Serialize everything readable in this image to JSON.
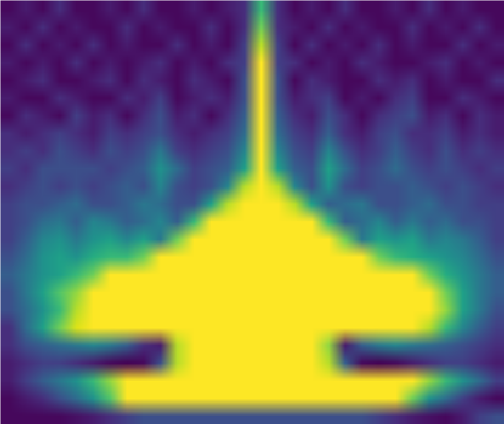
{
  "chart_data": {
    "type": "heatmap",
    "color": "viridis",
    "tick_labels": false,
    "values": [
      [
        0.1,
        0.15,
        0.1,
        0.2,
        0.1,
        0.1,
        0.15,
        0.1,
        0.2,
        0.1,
        0.1,
        0.15,
        0.1,
        0.15,
        0.2,
        0.7,
        0.2,
        0.1,
        0.15,
        0.1,
        0.2,
        0.1,
        0.1,
        0.15,
        0.1,
        0.2,
        0.1,
        0.15,
        0.1,
        0.1
      ],
      [
        0.15,
        0.1,
        0.2,
        0.1,
        0.15,
        0.1,
        0.1,
        0.2,
        0.1,
        0.15,
        0.1,
        0.1,
        0.2,
        0.1,
        0.2,
        0.8,
        0.2,
        0.15,
        0.1,
        0.2,
        0.1,
        0.15,
        0.1,
        0.1,
        0.2,
        0.1,
        0.15,
        0.1,
        0.2,
        0.1
      ],
      [
        0.1,
        0.2,
        0.1,
        0.15,
        0.1,
        0.2,
        0.1,
        0.15,
        0.1,
        0.1,
        0.2,
        0.1,
        0.15,
        0.1,
        0.25,
        0.9,
        0.25,
        0.1,
        0.2,
        0.1,
        0.15,
        0.1,
        0.2,
        0.1,
        0.15,
        0.1,
        0.1,
        0.2,
        0.1,
        0.15
      ],
      [
        0.15,
        0.1,
        0.15,
        0.1,
        0.2,
        0.1,
        0.15,
        0.1,
        0.15,
        0.2,
        0.1,
        0.15,
        0.1,
        0.2,
        0.25,
        1,
        0.25,
        0.2,
        0.1,
        0.15,
        0.1,
        0.2,
        0.15,
        0.1,
        0.1,
        0.15,
        0.2,
        0.1,
        0.15,
        0.1
      ],
      [
        0.1,
        0.15,
        0.2,
        0.1,
        0.1,
        0.15,
        0.2,
        0.1,
        0.2,
        0.15,
        0.1,
        0.2,
        0.15,
        0.1,
        0.3,
        1,
        0.3,
        0.1,
        0.2,
        0.15,
        0.1,
        0.1,
        0.2,
        0.15,
        0.2,
        0.1,
        0.15,
        0.1,
        0.1,
        0.2
      ],
      [
        0.15,
        0.1,
        0.1,
        0.2,
        0.15,
        0.1,
        0.1,
        0.2,
        0.15,
        0.25,
        0.1,
        0.15,
        0.2,
        0.15,
        0.3,
        1,
        0.3,
        0.15,
        0.2,
        0.25,
        0.1,
        0.15,
        0.1,
        0.2,
        0.25,
        0.1,
        0.1,
        0.2,
        0.15,
        0.1
      ],
      [
        0.1,
        0.2,
        0.15,
        0.1,
        0.25,
        0.15,
        0.2,
        0.1,
        0.2,
        0.3,
        0.15,
        0.2,
        0.1,
        0.2,
        0.35,
        1,
        0.35,
        0.2,
        0.15,
        0.3,
        0.2,
        0.1,
        0.2,
        0.25,
        0.3,
        0.15,
        0.2,
        0.1,
        0.2,
        0.15
      ],
      [
        0.2,
        0.15,
        0.2,
        0.25,
        0.2,
        0.15,
        0.25,
        0.2,
        0.25,
        0.3,
        0.2,
        0.15,
        0.2,
        0.25,
        0.4,
        1,
        0.4,
        0.25,
        0.2,
        0.35,
        0.2,
        0.15,
        0.25,
        0.3,
        0.2,
        0.2,
        0.25,
        0.15,
        0.2,
        0.15
      ],
      [
        0.2,
        0.25,
        0.2,
        0.3,
        0.25,
        0.2,
        0.3,
        0.25,
        0.3,
        0.45,
        0.25,
        0.2,
        0.25,
        0.3,
        0.5,
        1,
        0.5,
        0.3,
        0.25,
        0.5,
        0.3,
        0.2,
        0.25,
        0.35,
        0.25,
        0.2,
        0.3,
        0.2,
        0.25,
        0.2
      ],
      [
        0.25,
        0.2,
        0.3,
        0.3,
        0.3,
        0.3,
        0.25,
        0.3,
        0.35,
        0.55,
        0.4,
        0.25,
        0.3,
        0.35,
        0.6,
        1,
        0.6,
        0.35,
        0.3,
        0.6,
        0.4,
        0.25,
        0.3,
        0.4,
        0.3,
        0.25,
        0.3,
        0.25,
        0.2,
        0.25
      ],
      [
        0.2,
        0.25,
        0.3,
        0.25,
        0.3,
        0.25,
        0.3,
        0.35,
        0.3,
        0.5,
        0.3,
        0.25,
        0.3,
        0.5,
        0.9,
        1,
        0.9,
        0.5,
        0.3,
        0.55,
        0.3,
        0.25,
        0.3,
        0.3,
        0.35,
        0.3,
        0.25,
        0.3,
        0.25,
        0.2
      ],
      [
        0.25,
        0.3,
        0.3,
        0.35,
        0.4,
        0.3,
        0.3,
        0.35,
        0.45,
        0.4,
        0.3,
        0.3,
        0.6,
        0.9,
        1,
        1,
        1,
        0.9,
        0.6,
        0.35,
        0.4,
        0.45,
        0.3,
        0.3,
        0.35,
        0.4,
        0.3,
        0.3,
        0.25,
        0.25
      ],
      [
        0.25,
        0.3,
        0.4,
        0.45,
        0.35,
        0.5,
        0.45,
        0.35,
        0.4,
        0.5,
        0.35,
        0.7,
        1,
        1,
        1,
        1,
        1,
        1,
        1,
        0.7,
        0.35,
        0.4,
        0.5,
        0.35,
        0.45,
        0.35,
        0.4,
        0.3,
        0.3,
        0.25
      ],
      [
        0.25,
        0.35,
        0.5,
        0.55,
        0.45,
        0.55,
        0.6,
        0.5,
        0.6,
        0.45,
        0.8,
        1,
        1,
        1,
        1,
        1,
        1,
        1,
        1,
        1,
        0.8,
        0.45,
        0.6,
        0.55,
        0.6,
        0.45,
        0.5,
        0.45,
        0.35,
        0.25
      ],
      [
        0.3,
        0.4,
        0.55,
        0.6,
        0.55,
        0.65,
        0.7,
        0.7,
        0.8,
        1,
        1,
        1,
        1,
        1,
        1,
        1,
        1,
        1,
        1,
        1,
        1,
        1,
        0.8,
        0.7,
        0.65,
        0.6,
        0.55,
        0.5,
        0.4,
        0.3
      ],
      [
        0.35,
        0.45,
        0.55,
        0.6,
        0.7,
        0.8,
        1,
        1,
        1,
        1,
        1,
        1,
        1,
        1,
        1,
        1,
        1,
        1,
        1,
        1,
        1,
        1,
        1,
        1,
        1,
        0.8,
        0.65,
        0.55,
        0.45,
        0.35
      ],
      [
        0.3,
        0.45,
        0.6,
        0.75,
        0.85,
        1,
        1,
        1,
        1,
        1,
        1,
        1,
        1,
        1,
        1,
        1,
        1,
        1,
        1,
        1,
        1,
        1,
        1,
        1,
        1,
        1,
        0.8,
        0.6,
        0.45,
        0.35
      ],
      [
        0.3,
        0.4,
        0.55,
        0.7,
        0.9,
        1,
        1,
        1,
        1,
        1,
        1,
        1,
        1,
        1,
        1,
        1,
        1,
        1,
        1,
        1,
        1,
        1,
        1,
        1,
        1,
        1,
        0.85,
        0.6,
        0.45,
        0.3
      ],
      [
        0.2,
        0.4,
        0.6,
        0.8,
        0.95,
        1,
        1,
        1,
        1,
        1,
        1,
        1,
        1,
        1,
        1,
        1,
        1,
        1,
        1,
        1,
        1,
        1,
        1,
        1,
        1,
        0.9,
        0.7,
        0.5,
        0.35,
        0.25
      ],
      [
        0.2,
        0.3,
        0.35,
        0.4,
        0.45,
        0.5,
        0.45,
        0.35,
        0.2,
        0.15,
        0.9,
        1,
        1,
        1,
        1,
        1,
        1,
        1,
        1,
        0.85,
        0.15,
        0.35,
        0.45,
        0.5,
        0.45,
        0.4,
        0.35,
        0.3,
        0.25,
        0.2
      ],
      [
        0.15,
        0.2,
        0.25,
        0.25,
        0.2,
        0.15,
        0.1,
        0.08,
        0.1,
        0.3,
        0.9,
        1,
        1,
        1,
        1,
        1,
        1,
        1,
        1,
        0.9,
        0.35,
        0.1,
        0.08,
        0.1,
        0.15,
        0.2,
        0.25,
        0.25,
        0.2,
        0.15
      ],
      [
        0.15,
        0.25,
        0.35,
        0.45,
        0.55,
        0.7,
        0.85,
        1,
        1,
        1,
        1,
        1,
        1,
        1,
        1,
        1,
        1,
        1,
        1,
        1,
        1,
        1,
        1,
        1,
        1,
        0.85,
        0.7,
        0.55,
        0.4,
        0.25
      ],
      [
        0.1,
        0.15,
        0.2,
        0.3,
        0.4,
        0.55,
        0.75,
        1,
        1,
        1,
        1,
        1,
        1,
        1,
        1,
        1,
        1,
        1,
        1,
        1,
        1,
        1,
        1,
        1,
        0.8,
        0.55,
        0.4,
        0.25,
        0.15,
        0.1
      ],
      [
        0.1,
        0.1,
        0.1,
        0.1,
        0.12,
        0.15,
        0.2,
        0.25,
        0.3,
        0.3,
        0.3,
        0.3,
        0.3,
        0.3,
        0.3,
        0.3,
        0.3,
        0.3,
        0.3,
        0.3,
        0.3,
        0.3,
        0.25,
        0.2,
        0.15,
        0.12,
        0.1,
        0.15,
        0.25,
        0.3
      ]
    ]
  }
}
